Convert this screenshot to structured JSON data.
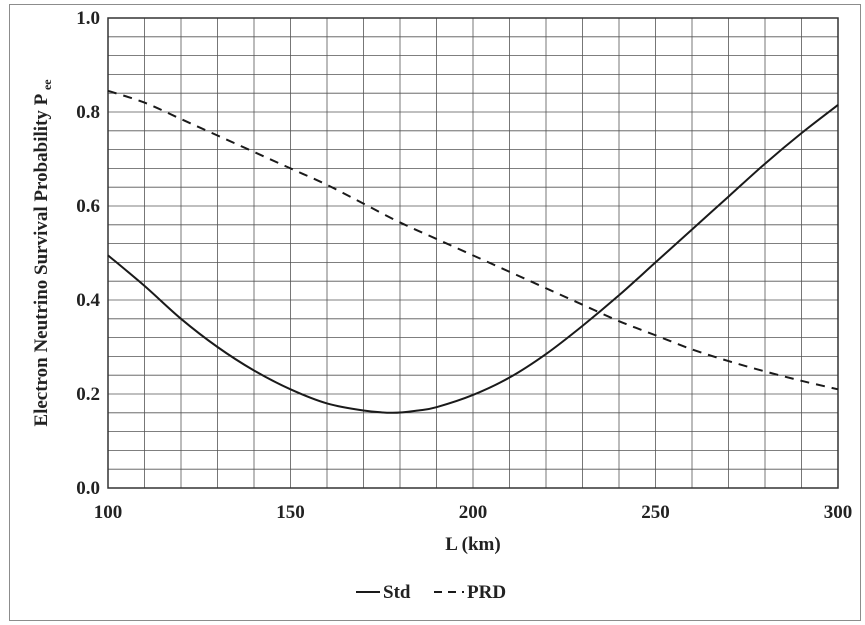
{
  "chart_data": {
    "type": "line",
    "xlabel": "L (km)",
    "ylabel": {
      "main": "Electron Neutrino Survival Probability P",
      "subscript": "ee"
    },
    "xlim": [
      100,
      300
    ],
    "ylim": [
      0.0,
      1.0
    ],
    "xticks": [
      "100",
      "150",
      "200",
      "250",
      "300"
    ],
    "yticks": [
      "0.0",
      "0.2",
      "0.4",
      "0.6",
      "0.8",
      "1.0"
    ],
    "grid": true,
    "legend_position": "bottom-center",
    "series": [
      {
        "name": "Std",
        "style": "solid",
        "color": "#1a1a1a",
        "x": [
          100,
          110,
          120,
          130,
          140,
          150,
          160,
          170,
          178,
          185,
          190,
          200,
          210,
          220,
          230,
          240,
          250,
          260,
          270,
          280,
          290,
          300
        ],
        "y": [
          0.495,
          0.43,
          0.36,
          0.3,
          0.25,
          0.21,
          0.18,
          0.165,
          0.16,
          0.165,
          0.172,
          0.198,
          0.235,
          0.285,
          0.345,
          0.41,
          0.48,
          0.55,
          0.62,
          0.69,
          0.755,
          0.815
        ]
      },
      {
        "name": "PRD",
        "style": "dashed",
        "color": "#1a1a1a",
        "x": [
          100,
          110,
          120,
          130,
          140,
          150,
          160,
          170,
          180,
          190,
          200,
          210,
          220,
          230,
          240,
          250,
          260,
          270,
          280,
          290,
          300
        ],
        "y": [
          0.845,
          0.82,
          0.785,
          0.75,
          0.715,
          0.68,
          0.645,
          0.605,
          0.565,
          0.53,
          0.495,
          0.46,
          0.425,
          0.39,
          0.355,
          0.325,
          0.295,
          0.27,
          0.248,
          0.228,
          0.21
        ]
      }
    ]
  }
}
